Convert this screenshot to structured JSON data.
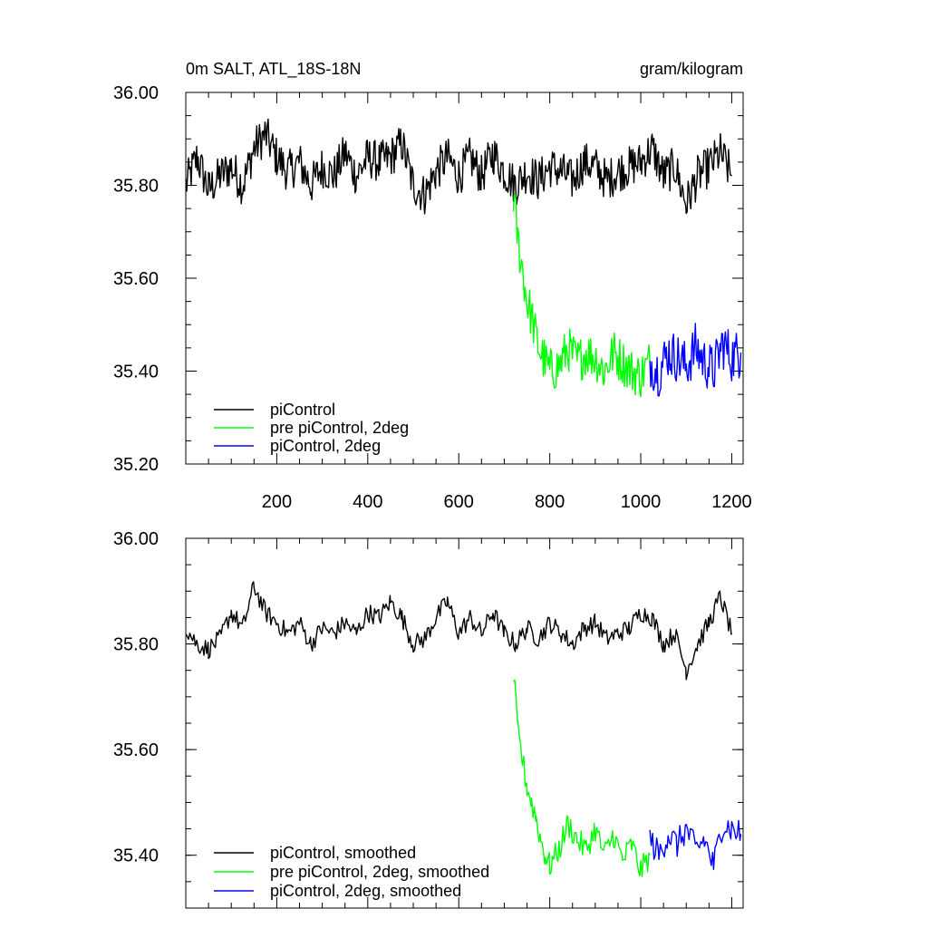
{
  "chart_data": [
    {
      "type": "line",
      "title_left": "0m SALT, ATL_18S-18N",
      "title_right": "gram/kilogram",
      "xlim": [
        0,
        1225
      ],
      "ylim": [
        35.2,
        36.0
      ],
      "xticks": [
        200,
        400,
        600,
        800,
        1000,
        1200
      ],
      "xtick_labels": [
        "200",
        "400",
        "600",
        "800",
        "1000",
        "1200"
      ],
      "yticks": [
        35.2,
        35.4,
        35.6,
        35.8,
        36.0
      ],
      "ytick_labels": [
        "35.20",
        "35.40",
        "35.60",
        "35.80",
        "36.00"
      ],
      "legend_location": "lower-left",
      "series": [
        {
          "name": "piControl",
          "color": "#000000",
          "x": [
            0,
            25,
            50,
            75,
            100,
            125,
            150,
            175,
            200,
            225,
            250,
            275,
            300,
            325,
            350,
            375,
            400,
            425,
            450,
            475,
            500,
            525,
            550,
            575,
            600,
            625,
            650,
            675,
            700,
            725,
            750,
            775,
            800,
            825,
            850,
            875,
            900,
            925,
            950,
            975,
            1000,
            1025,
            1050,
            1075,
            1100,
            1125,
            1150,
            1175,
            1200
          ],
          "values": [
            35.8,
            35.86,
            35.79,
            35.82,
            35.84,
            35.8,
            35.88,
            35.91,
            35.86,
            35.83,
            35.85,
            35.8,
            35.84,
            35.82,
            35.87,
            35.82,
            35.86,
            35.85,
            35.86,
            35.89,
            35.8,
            35.78,
            35.83,
            35.86,
            35.82,
            35.86,
            35.82,
            35.87,
            35.83,
            35.8,
            35.83,
            35.81,
            35.84,
            35.83,
            35.81,
            35.85,
            35.84,
            35.81,
            35.83,
            35.84,
            35.85,
            35.88,
            35.82,
            35.84,
            35.76,
            35.82,
            35.84,
            35.87,
            35.82
          ]
        },
        {
          "name": "pre piControl, 2deg",
          "color": "#00ff00",
          "x": [
            720,
            730,
            740,
            750,
            760,
            770,
            780,
            790,
            800,
            820,
            840,
            860,
            880,
            900,
            920,
            940,
            960,
            980,
            1000,
            1020
          ],
          "values": [
            35.78,
            35.68,
            35.62,
            35.55,
            35.52,
            35.47,
            35.44,
            35.42,
            35.4,
            35.41,
            35.45,
            35.42,
            35.44,
            35.43,
            35.4,
            35.44,
            35.42,
            35.4,
            35.39,
            35.42
          ]
        },
        {
          "name": "piControl, 2deg",
          "color": "#0000ff",
          "x": [
            1020,
            1040,
            1060,
            1080,
            1100,
            1120,
            1140,
            1160,
            1180,
            1200,
            1220
          ],
          "values": [
            35.42,
            35.4,
            35.44,
            35.43,
            35.41,
            35.45,
            35.42,
            35.4,
            35.46,
            35.43,
            35.44
          ]
        }
      ]
    },
    {
      "type": "line",
      "xlim": [
        0,
        1225
      ],
      "ylim": [
        35.3,
        36.0
      ],
      "xticks": [
        200,
        400,
        600,
        800,
        1000,
        1200
      ],
      "yticks": [
        35.4,
        35.6,
        35.8,
        36.0
      ],
      "ytick_labels": [
        "35.40",
        "35.60",
        "35.80",
        "36.00"
      ],
      "legend_location": "lower-left",
      "series": [
        {
          "name": "piControl, smoothed",
          "color": "#000000",
          "x": [
            0,
            25,
            50,
            75,
            100,
            125,
            150,
            175,
            200,
            225,
            250,
            275,
            300,
            325,
            350,
            375,
            400,
            425,
            450,
            475,
            500,
            525,
            550,
            575,
            600,
            625,
            650,
            675,
            700,
            725,
            750,
            775,
            800,
            825,
            850,
            875,
            900,
            925,
            950,
            975,
            1000,
            1025,
            1050,
            1075,
            1100,
            1125,
            1150,
            1175,
            1200
          ],
          "values": [
            35.83,
            35.8,
            35.79,
            35.81,
            35.86,
            35.83,
            35.91,
            35.86,
            35.84,
            35.82,
            35.84,
            35.8,
            35.83,
            35.82,
            35.84,
            35.82,
            35.86,
            35.85,
            35.88,
            35.85,
            35.8,
            35.81,
            35.85,
            35.88,
            35.82,
            35.85,
            35.82,
            35.86,
            35.82,
            35.8,
            35.83,
            35.81,
            35.84,
            35.82,
            35.8,
            35.83,
            35.84,
            35.81,
            35.82,
            35.83,
            35.86,
            35.85,
            35.8,
            35.82,
            35.75,
            35.8,
            35.84,
            35.89,
            35.82
          ]
        },
        {
          "name": "pre piControl, 2deg, smoothed",
          "color": "#00ff00",
          "x": [
            720,
            730,
            740,
            750,
            760,
            770,
            780,
            790,
            800,
            820,
            840,
            860,
            880,
            900,
            920,
            940,
            960,
            980,
            1000,
            1020
          ],
          "values": [
            35.74,
            35.63,
            35.58,
            35.53,
            35.5,
            35.47,
            35.43,
            35.4,
            35.38,
            35.41,
            35.46,
            35.43,
            35.41,
            35.45,
            35.4,
            35.44,
            35.39,
            35.42,
            35.37,
            35.4
          ]
        },
        {
          "name": "piControl, 2deg, smoothed",
          "color": "#0000ff",
          "x": [
            1020,
            1040,
            1060,
            1080,
            1100,
            1120,
            1140,
            1160,
            1180,
            1200,
            1220
          ],
          "values": [
            35.43,
            35.4,
            35.44,
            35.42,
            35.45,
            35.41,
            35.43,
            35.38,
            35.46,
            35.45,
            35.44
          ]
        }
      ]
    }
  ]
}
